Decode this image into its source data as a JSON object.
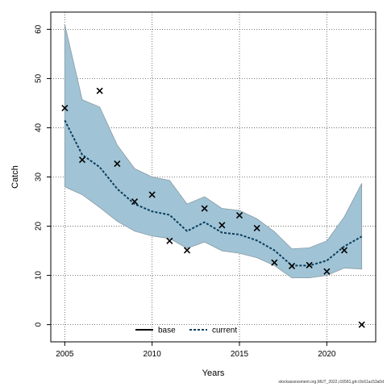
{
  "chart_data": {
    "type": "line",
    "title": "",
    "xlabel": "Years",
    "ylabel": "Catch",
    "xlim": [
      2004.2,
      2022.8
    ],
    "ylim": [
      -3.5,
      63.5
    ],
    "x_ticks": [
      2005,
      2010,
      2015,
      2020
    ],
    "y_ticks": [
      0,
      10,
      20,
      30,
      40,
      50,
      60
    ],
    "grid": true,
    "legend_position": "bottom-center",
    "band": {
      "color": "#a0c4d6",
      "stroke": "#8a9aa3",
      "x": [
        2005,
        2006,
        2007,
        2008,
        2009,
        2010,
        2011,
        2012,
        2013,
        2014,
        2015,
        2016,
        2017,
        2018,
        2019,
        2020,
        2021,
        2022
      ],
      "upper": [
        61.0,
        45.7,
        44.2,
        36.5,
        31.7,
        30.0,
        29.3,
        24.5,
        26.0,
        23.6,
        23.2,
        21.5,
        18.9,
        15.4,
        15.6,
        17.0,
        21.9,
        28.7
      ],
      "lower": [
        28.0,
        26.4,
        23.8,
        21.0,
        19.0,
        18.0,
        17.5,
        15.5,
        16.8,
        15.0,
        14.5,
        13.6,
        12.0,
        9.5,
        9.5,
        10.0,
        11.5,
        11.3
      ]
    },
    "series": [
      {
        "name": "base",
        "color": "#000000",
        "style": "solid",
        "x": [],
        "values": []
      },
      {
        "name": "current",
        "color": "#0a3d5c",
        "style": "dotted",
        "x": [
          2005,
          2006,
          2007,
          2008,
          2009,
          2010,
          2011,
          2012,
          2013,
          2014,
          2015,
          2016,
          2017,
          2018,
          2019,
          2020,
          2021,
          2022
        ],
        "values": [
          41.5,
          34.5,
          32.0,
          27.6,
          24.5,
          23.0,
          22.3,
          19.0,
          20.8,
          18.7,
          18.3,
          17.1,
          15.1,
          12.0,
          12.0,
          13.0,
          15.9,
          17.9
        ]
      }
    ],
    "observed": {
      "marker": "x",
      "x": [
        2005,
        2006,
        2007,
        2008,
        2009,
        2010,
        2011,
        2012,
        2013,
        2014,
        2015,
        2016,
        2017,
        2018,
        2019,
        2020,
        2021,
        2022
      ],
      "values": [
        44.0,
        33.5,
        47.5,
        32.7,
        25.0,
        26.4,
        17.0,
        15.1,
        23.6,
        20.2,
        22.2,
        19.6,
        12.6,
        11.9,
        12.1,
        10.8,
        15.1,
        0.0
      ]
    }
  },
  "footer_text": "stockassessment.org,MUT_2022,r16581,git:c9c61ac53a0d"
}
